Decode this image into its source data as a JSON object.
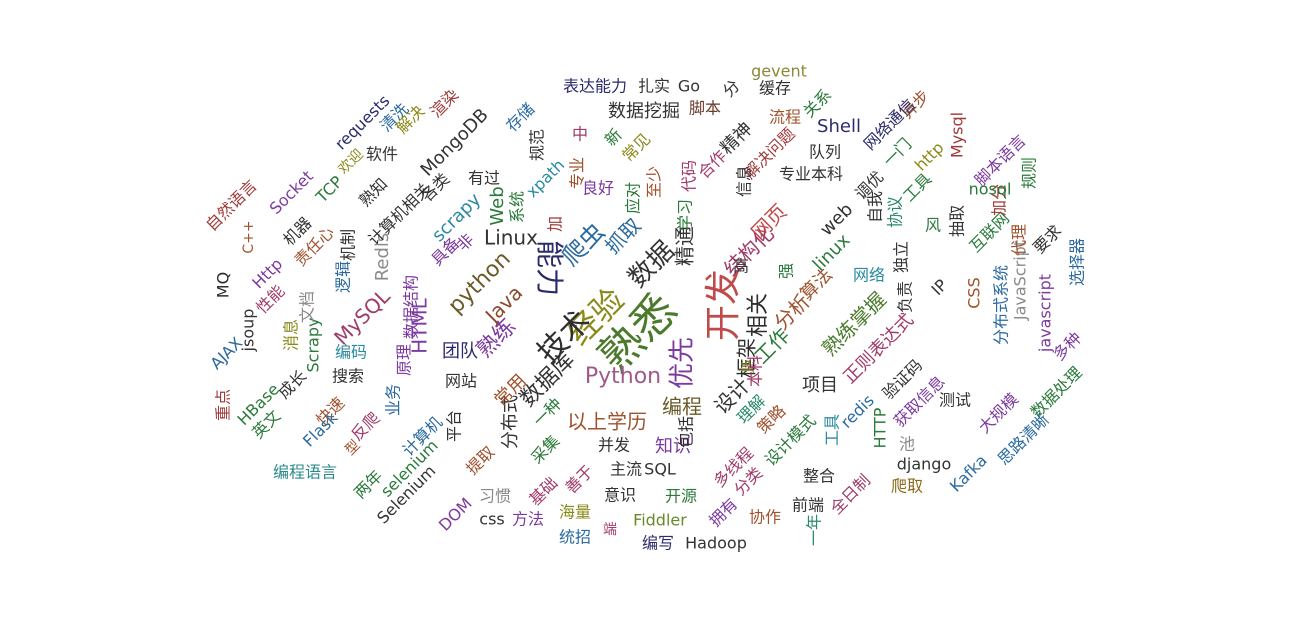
{
  "chart_data": {
    "type": "wordcloud",
    "words": [
      {
        "text": "熟悉",
        "color": "#4b7a2c"
      },
      {
        "text": "经验",
        "color": "#8a8a1a"
      },
      {
        "text": "开发",
        "color": "#c04a4a"
      },
      {
        "text": "技术",
        "color": "#2e2e2e"
      },
      {
        "text": "优先",
        "color": "#7c3aa0"
      },
      {
        "text": "能力",
        "color": "#2b2b6b"
      },
      {
        "text": "数据",
        "color": "#333333"
      },
      {
        "text": "Python",
        "color": "#a05a8a"
      },
      {
        "text": "相关",
        "color": "#2e2e2e"
      },
      {
        "text": "爬虫",
        "color": "#2a6aa0"
      },
      {
        "text": "python",
        "color": "#6a5a2a"
      },
      {
        "text": "Java",
        "color": "#8a4a2a"
      },
      {
        "text": "框架",
        "color": "#2e2e2e"
      },
      {
        "text": "数据库",
        "color": "#333333"
      },
      {
        "text": "分析",
        "color": "#a0522d"
      },
      {
        "text": "熟练",
        "color": "#7c3aa0"
      },
      {
        "text": "工作",
        "color": "#2a7a3a"
      },
      {
        "text": "抓取",
        "color": "#2a6aa0"
      },
      {
        "text": "精通",
        "color": "#333333"
      },
      {
        "text": "结构化",
        "color": "#a03a6a"
      },
      {
        "text": "网页",
        "color": "#c04a4a"
      },
      {
        "text": "Linux",
        "color": "#333333"
      },
      {
        "text": "编程",
        "color": "#6a5a2a"
      },
      {
        "text": "以上学历",
        "color": "#a0522d"
      },
      {
        "text": "设计",
        "color": "#333333"
      },
      {
        "text": "项目",
        "color": "#333333"
      },
      {
        "text": "熟练掌握",
        "color": "#4b7a2c"
      },
      {
        "text": "正则表达式",
        "color": "#a03a6a"
      },
      {
        "text": "知识",
        "color": "#7c3aa0"
      },
      {
        "text": "分布式",
        "color": "#333333"
      },
      {
        "text": "常用",
        "color": "#a0522d"
      },
      {
        "text": "团队",
        "color": "#2b2b6b"
      },
      {
        "text": "MySQL",
        "color": "#a03a6a"
      },
      {
        "text": "Redis",
        "color": "#8a8a8a"
      },
      {
        "text": "HTML",
        "color": "#7c3aa0"
      },
      {
        "text": "Web",
        "color": "#2a7a3a"
      },
      {
        "text": "scrapy",
        "color": "#2a8aa0"
      },
      {
        "text": "MongoDB",
        "color": "#333333"
      },
      {
        "text": "Shell",
        "color": "#2b2b6b"
      },
      {
        "text": "gevent",
        "color": "#8a8a3a"
      },
      {
        "text": "Go",
        "color": "#333333"
      },
      {
        "text": "表达能力",
        "color": "#2b2b6b"
      },
      {
        "text": "扎实",
        "color": "#333333"
      },
      {
        "text": "数据挖掘",
        "color": "#333333"
      },
      {
        "text": "脚本",
        "color": "#6a3a2a"
      },
      {
        "text": "精神",
        "color": "#333333"
      },
      {
        "text": "流程",
        "color": "#a0522d"
      },
      {
        "text": "缓存",
        "color": "#333333"
      },
      {
        "text": "队列",
        "color": "#333333"
      },
      {
        "text": "专业本科",
        "color": "#333333"
      },
      {
        "text": "解决问题",
        "color": "#a03a3a"
      },
      {
        "text": "web",
        "color": "#333333"
      },
      {
        "text": "linux",
        "color": "#2a7a3a"
      },
      {
        "text": "算法",
        "color": "#a0522d"
      },
      {
        "text": "网络",
        "color": "#2a8aa0"
      },
      {
        "text": "独立",
        "color": "#333333"
      },
      {
        "text": "负责",
        "color": "#333333"
      },
      {
        "text": "IP",
        "color": "#333333"
      },
      {
        "text": "CSS",
        "color": "#a0522d"
      },
      {
        "text": "JavaScript",
        "color": "#8a8a8a"
      },
      {
        "text": "javascript",
        "color": "#7c3aa0"
      },
      {
        "text": "分布式系统",
        "color": "#2a6aa0"
      },
      {
        "text": "多种",
        "color": "#7c3aa0"
      },
      {
        "text": "数据处理",
        "color": "#2a7a3a"
      },
      {
        "text": "大规模",
        "color": "#7c3aa0"
      },
      {
        "text": "思路清晰",
        "color": "#2a6aa0"
      },
      {
        "text": "测试",
        "color": "#333333"
      },
      {
        "text": "验证码",
        "color": "#333333"
      },
      {
        "text": "获取信息",
        "color": "#7c3aa0"
      },
      {
        "text": "HTTP",
        "color": "#2a7a3a"
      },
      {
        "text": "redis",
        "color": "#2a6aa0"
      },
      {
        "text": "工具",
        "color": "#2a8aa0"
      },
      {
        "text": "设计模式",
        "color": "#2a7a3a"
      },
      {
        "text": "策略",
        "color": "#a0522d"
      },
      {
        "text": "理解",
        "color": "#2a8a6a"
      },
      {
        "text": "本科",
        "color": "#a03a6a"
      },
      {
        "text": "js",
        "color": "#8a8a1a"
      },
      {
        "text": "包括",
        "color": "#2e2e2e"
      },
      {
        "text": "多线程",
        "color": "#a03a6a"
      },
      {
        "text": "分类",
        "color": "#a03a6a"
      },
      {
        "text": "整合",
        "color": "#333333"
      },
      {
        "text": "前端",
        "color": "#333333"
      },
      {
        "text": "全日制",
        "color": "#a03a6a"
      },
      {
        "text": "爬取",
        "color": "#8a6a1a"
      },
      {
        "text": "django",
        "color": "#333333"
      },
      {
        "text": "Kafka",
        "color": "#2a6aa0"
      },
      {
        "text": "池",
        "color": "#8a8a8a"
      },
      {
        "text": "协作",
        "color": "#a0522d"
      },
      {
        "text": "一年",
        "color": "#2a8a6a"
      },
      {
        "text": "拥有",
        "color": "#7c3aa0"
      },
      {
        "text": "SQL",
        "color": "#333333"
      },
      {
        "text": "主流",
        "color": "#333333"
      },
      {
        "text": "开源",
        "color": "#2a7a3a"
      },
      {
        "text": "意识",
        "color": "#333333"
      },
      {
        "text": "Fiddler",
        "color": "#6a8a2a"
      },
      {
        "text": "编写",
        "color": "#2b2b6b"
      },
      {
        "text": "Hadoop",
        "color": "#333333"
      },
      {
        "text": "统招",
        "color": "#2a6aa0"
      },
      {
        "text": "海量",
        "color": "#8a8a1a"
      },
      {
        "text": "端",
        "color": "#a03a6a"
      },
      {
        "text": "方法",
        "color": "#7c3aa0"
      },
      {
        "text": "css",
        "color": "#333333"
      },
      {
        "text": "习惯",
        "color": "#8a8a8a"
      },
      {
        "text": "善于",
        "color": "#a03a6a"
      },
      {
        "text": "基础",
        "color": "#a03a6a"
      },
      {
        "text": "采集",
        "color": "#2a7a3a"
      },
      {
        "text": "并发",
        "color": "#333333"
      },
      {
        "text": "一种",
        "color": "#2a7a3a"
      },
      {
        "text": "平台",
        "color": "#333333"
      },
      {
        "text": "提取",
        "color": "#a0522d"
      },
      {
        "text": "DOM",
        "color": "#7c3aa0"
      },
      {
        "text": "Selenium",
        "color": "#333333"
      },
      {
        "text": "selenium",
        "color": "#2a7a3a"
      },
      {
        "text": "计算机",
        "color": "#2a6aa0"
      },
      {
        "text": "业务",
        "color": "#2a6aa0"
      },
      {
        "text": "反爬",
        "color": "#a03a6a"
      },
      {
        "text": "快速",
        "color": "#a0522d"
      },
      {
        "text": "两年",
        "color": "#2a7a3a"
      },
      {
        "text": "型",
        "color": "#a0522d"
      },
      {
        "text": "Flask",
        "color": "#2a6aa0"
      },
      {
        "text": "编程语言",
        "color": "#2a8a8a"
      },
      {
        "text": "英文",
        "color": "#2a7a3a"
      },
      {
        "text": "重点",
        "color": "#a03a3a"
      },
      {
        "text": "HBase",
        "color": "#2a7a3a"
      },
      {
        "text": "成长",
        "color": "#333333"
      },
      {
        "text": "搜索",
        "color": "#333333"
      },
      {
        "text": "编码",
        "color": "#2a8aa0"
      },
      {
        "text": "原理",
        "color": "#7c3aa0"
      },
      {
        "text": "数据结构",
        "color": "#7c3aa0"
      },
      {
        "text": "计算机相关",
        "color": "#333333"
      },
      {
        "text": "网站",
        "color": "#333333"
      },
      {
        "text": "AJAX",
        "color": "#2a6aa0"
      },
      {
        "text": "jsoup",
        "color": "#333333"
      },
      {
        "text": "消息",
        "color": "#8a8a1a"
      },
      {
        "text": "Scrapy",
        "color": "#2a7a3a"
      },
      {
        "text": "文档",
        "color": "#8a8a8a"
      },
      {
        "text": "性能",
        "color": "#a03a6a"
      },
      {
        "text": "MQ",
        "color": "#2e2e2e"
      },
      {
        "text": "Http",
        "color": "#7c3aa0"
      },
      {
        "text": "C++",
        "color": "#a0522d"
      },
      {
        "text": "自然语言",
        "color": "#a03a3a"
      },
      {
        "text": "机器",
        "color": "#333333"
      },
      {
        "text": "责任心",
        "color": "#a0522d"
      },
      {
        "text": "Socket",
        "color": "#7c3aa0"
      },
      {
        "text": "TCP",
        "color": "#2a7a3a"
      },
      {
        "text": "欢迎",
        "color": "#8a8a1a"
      },
      {
        "text": "requests",
        "color": "#2b2b6b"
      },
      {
        "text": "清洗",
        "color": "#2a6aa0"
      },
      {
        "text": "解决",
        "color": "#8a8a1a"
      },
      {
        "text": "渲染",
        "color": "#a03a3a"
      },
      {
        "text": "软件",
        "color": "#333333"
      },
      {
        "text": "熟知",
        "color": "#333333"
      },
      {
        "text": "机制",
        "color": "#333333"
      },
      {
        "text": "逻辑",
        "color": "#2a6aa0"
      },
      {
        "text": "具备",
        "color": "#7c3aa0"
      },
      {
        "text": "各类",
        "color": "#333333"
      },
      {
        "text": "有过",
        "color": "#333333"
      },
      {
        "text": "非",
        "color": "#7c3aa0"
      },
      {
        "text": "存储",
        "color": "#2a6aa0"
      },
      {
        "text": "xpath",
        "color": "#2a8aa0"
      },
      {
        "text": "规范",
        "color": "#333333"
      },
      {
        "text": "系统",
        "color": "#2a7a3a"
      },
      {
        "text": "专业",
        "color": "#a0522d"
      },
      {
        "text": "加",
        "color": "#a03a3a"
      },
      {
        "text": "中",
        "color": "#a03a6a"
      },
      {
        "text": "良好",
        "color": "#7c3aa0"
      },
      {
        "text": "新",
        "color": "#2a7a3a"
      },
      {
        "text": "常见",
        "color": "#8a8a1a"
      },
      {
        "text": "至少",
        "color": "#a0522d"
      },
      {
        "text": "应对",
        "color": "#2a7a3a"
      },
      {
        "text": "代码",
        "color": "#a03a6a"
      },
      {
        "text": "学习",
        "color": "#2a7a3a"
      },
      {
        "text": "合作",
        "color": "#a03a6a"
      },
      {
        "text": "信息",
        "color": "#333333"
      },
      {
        "text": "高",
        "color": "#333333"
      },
      {
        "text": "强",
        "color": "#2a7a3a"
      },
      {
        "text": "分",
        "color": "#333333"
      },
      {
        "text": "关系",
        "color": "#2a7a3a"
      },
      {
        "text": "异步",
        "color": "#a0522d"
      },
      {
        "text": "网络通信",
        "color": "#2b2b6b"
      },
      {
        "text": "一门",
        "color": "#2a7a3a"
      },
      {
        "text": "http",
        "color": "#8a8a1a"
      },
      {
        "text": "Mysql",
        "color": "#a03a3a"
      },
      {
        "text": "规则",
        "color": "#2a7a3a"
      },
      {
        "text": "脚本语言",
        "color": "#7c3aa0"
      },
      {
        "text": "工具",
        "color": "#2a7a3a"
      },
      {
        "text": "自我",
        "color": "#333333"
      },
      {
        "text": "协议",
        "color": "#2a8a6a"
      },
      {
        "text": "调优",
        "color": "#333333"
      },
      {
        "text": "风",
        "color": "#2a7a3a"
      },
      {
        "text": "抽取",
        "color": "#333333"
      },
      {
        "text": "互联网",
        "color": "#2a7a3a"
      },
      {
        "text": "代理",
        "color": "#a0522d"
      },
      {
        "text": "加分",
        "color": "#a03a3a"
      },
      {
        "text": "要求",
        "color": "#333333"
      },
      {
        "text": "选择器",
        "color": "#2a6aa0"
      },
      {
        "text": "nosql",
        "color": "#2a7a3a"
      },
      {
        "text": "非关系",
        "color": "#333333"
      }
    ]
  }
}
